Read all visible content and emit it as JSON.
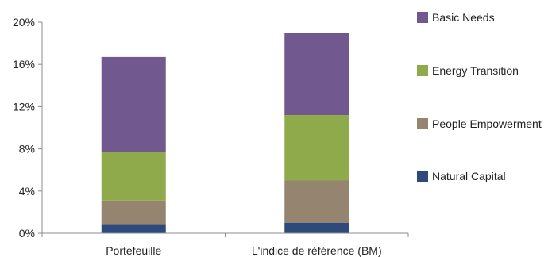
{
  "chart_data": {
    "type": "bar",
    "stacked": true,
    "categories": [
      "Portefeuille",
      "L'indice de référence (BM)"
    ],
    "series": [
      {
        "name": "Natural Capital",
        "color": "#2E4A7A",
        "values": [
          0.8,
          1.0
        ]
      },
      {
        "name": "People Empowerment",
        "color": "#948470",
        "values": [
          2.3,
          4.0
        ]
      },
      {
        "name": "Energy Transition",
        "color": "#8FAA4B",
        "values": [
          4.6,
          6.2
        ]
      },
      {
        "name": "Basic Needs",
        "color": "#71588F",
        "values": [
          9.0,
          7.8
        ]
      }
    ],
    "y_ticks": [
      "0%",
      "4%",
      "8%",
      "12%",
      "16%",
      "20%"
    ],
    "y_tick_values": [
      0,
      4,
      8,
      12,
      16,
      20
    ],
    "ylim": [
      0,
      20
    ],
    "grid": false,
    "legend": {
      "position": "right",
      "order": [
        "Basic Needs",
        "Energy Transition",
        "People Empowerment",
        "Natural Capital"
      ]
    }
  }
}
